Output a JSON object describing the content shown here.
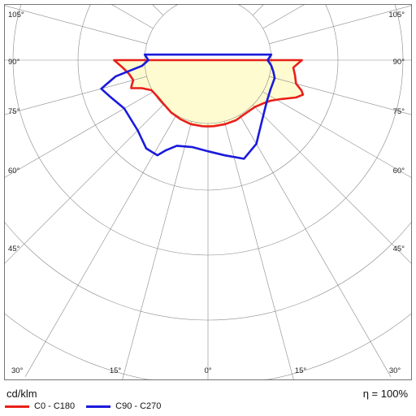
{
  "chart_data": {
    "type": "polar-luminous-intensity",
    "unit_label": "cd/klm",
    "efficiency_label": "η = 100%",
    "angle_labels": [
      "105°",
      "90°",
      "75°",
      "60°",
      "45°",
      "30°",
      "15°",
      "0°",
      "15°",
      "30°",
      "45°",
      "60°",
      "75°",
      "90°",
      "105°"
    ],
    "fill_color": "#fffbd0",
    "grid_color": "#888888",
    "series": [
      {
        "name": "C0 - C180",
        "color": "#e8201a",
        "points_deg_intensity": [
          [
            -90,
            170
          ],
          [
            -85,
            155
          ],
          [
            -80,
            145
          ],
          [
            -75,
            140
          ],
          [
            -72,
            145
          ],
          [
            -70,
            148
          ],
          [
            -67,
            130
          ],
          [
            -62,
            116
          ],
          [
            -55,
            113
          ],
          [
            -45,
            113
          ],
          [
            -35,
            116
          ],
          [
            -25,
            118
          ],
          [
            -15,
            120
          ],
          [
            -5,
            120
          ],
          [
            0,
            120
          ],
          [
            5,
            120
          ],
          [
            15,
            120
          ],
          [
            25,
            120
          ],
          [
            35,
            118
          ],
          [
            45,
            120
          ],
          [
            52,
            127
          ],
          [
            57,
            135
          ],
          [
            62,
            150
          ],
          [
            67,
            173
          ],
          [
            70,
            183
          ],
          [
            72,
            178
          ],
          [
            75,
            165
          ],
          [
            80,
            160
          ],
          [
            85,
            155
          ],
          [
            90,
            170
          ]
        ]
      },
      {
        "name": "C90 - C270",
        "color": "#1a1adb",
        "points_deg_intensity": [
          [
            -95,
            115
          ],
          [
            -90,
            108
          ],
          [
            -85,
            120
          ],
          [
            -80,
            170
          ],
          [
            -75,
            200
          ],
          [
            -70,
            190
          ],
          [
            -60,
            175
          ],
          [
            -45,
            180
          ],
          [
            -35,
            195
          ],
          [
            -28,
            195
          ],
          [
            -25,
            180
          ],
          [
            -20,
            165
          ],
          [
            -10,
            160
          ],
          [
            0,
            165
          ],
          [
            10,
            175
          ],
          [
            20,
            190
          ],
          [
            30,
            175
          ],
          [
            40,
            150
          ],
          [
            55,
            130
          ],
          [
            65,
            125
          ],
          [
            75,
            125
          ],
          [
            80,
            120
          ],
          [
            85,
            115
          ],
          [
            90,
            108
          ],
          [
            95,
            115
          ]
        ]
      }
    ],
    "legend": [
      "C0 - C180",
      "C90 - C270"
    ]
  }
}
